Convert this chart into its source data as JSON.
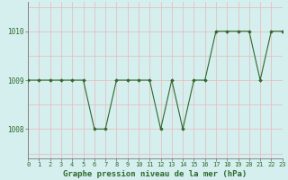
{
  "x": [
    0,
    1,
    2,
    3,
    4,
    5,
    6,
    7,
    8,
    9,
    10,
    11,
    12,
    13,
    14,
    15,
    16,
    17,
    18,
    19,
    20,
    21,
    22,
    23
  ],
  "y": [
    1009,
    1009,
    1009,
    1009,
    1009,
    1009,
    1008,
    1008,
    1009,
    1009,
    1009,
    1009,
    1008,
    1009,
    1008,
    1009,
    1009,
    1010,
    1010,
    1010,
    1010,
    1009,
    1010,
    1010
  ],
  "line_color": "#2d6a2d",
  "marker_color": "#2d6a2d",
  "bg_color": "#d5eeee",
  "plot_bg_color": "#d5eeee",
  "grid_color_v": "#e8b8b8",
  "grid_color_h": "#e8b8b8",
  "axis_color": "#888888",
  "text_color": "#2d6a2d",
  "title": "Graphe pression niveau de la mer (hPa)",
  "ylabel_ticks": [
    1008,
    1009,
    1010
  ],
  "xlim": [
    0,
    23
  ],
  "ylim": [
    1007.4,
    1010.6
  ],
  "xtick_labels": [
    "0",
    "1",
    "2",
    "3",
    "4",
    "5",
    "6",
    "7",
    "8",
    "9",
    "10",
    "11",
    "12",
    "13",
    "14",
    "15",
    "16",
    "17",
    "18",
    "19",
    "20",
    "21",
    "22",
    "23"
  ],
  "title_fontsize": 6.5,
  "tick_fontsize": 5.5
}
